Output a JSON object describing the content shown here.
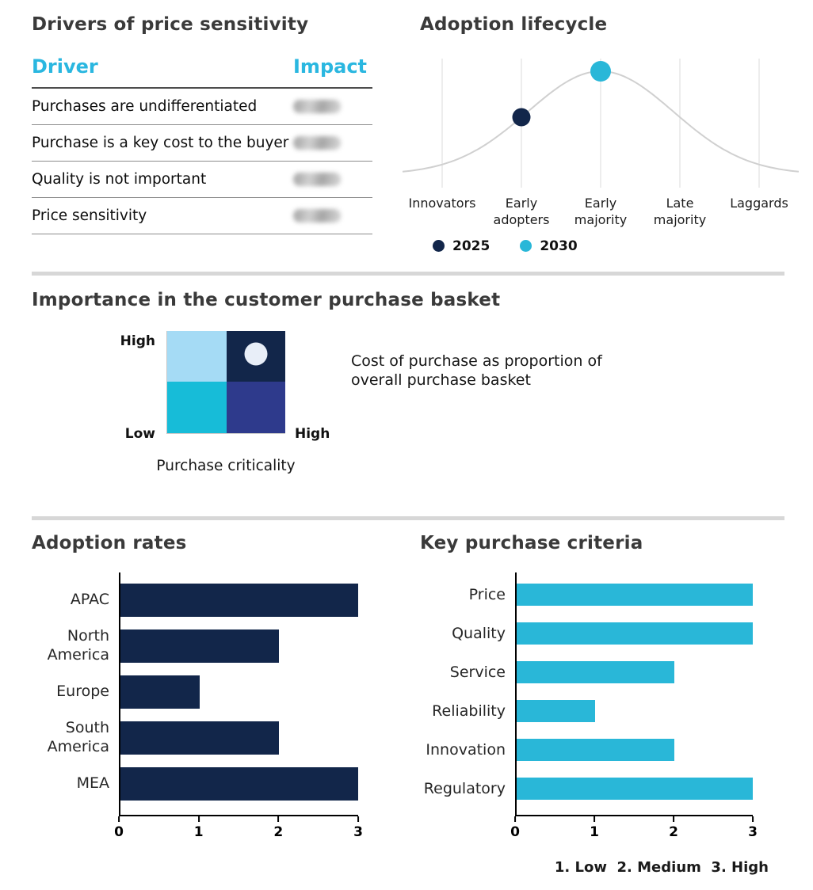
{
  "colors": {
    "navy": "#12264a",
    "cyan": "#29b7d8",
    "header_cyan": "#2ab7e0",
    "light_blue": "#a5dbf5",
    "quadrant_cyan": "#17bcd8",
    "indigo": "#2e3a8c",
    "marker_light": "#e8eef8",
    "curve_gray": "#d0d0d0",
    "divider_gray": "#d7d7d7"
  },
  "chart_data": [
    {
      "type": "table",
      "title": "Drivers of price sensitivity",
      "columns": [
        "Driver",
        "Impact"
      ],
      "rows": [
        "Purchases are undifferentiated",
        "Purchase is a key cost to the buyer",
        "Quality is not important",
        "Price sensitivity"
      ],
      "impact_values": [
        "blurred",
        "blurred",
        "blurred",
        "blurred"
      ]
    },
    {
      "type": "line",
      "title": "Adoption lifecycle",
      "curve": "bell",
      "categories": [
        "Innovators",
        "Early adopters",
        "Early majority",
        "Late majority",
        "Laggards"
      ],
      "markers": [
        {
          "label": "2025",
          "category": "Early adopters",
          "color_key": "navy"
        },
        {
          "label": "2030",
          "category": "Early majority",
          "color_key": "cyan"
        }
      ],
      "legend_position": "bottom"
    },
    {
      "type": "heatmap",
      "title": "Importance in the customer purchase basket",
      "xlabel": "Purchase criticality",
      "y_top_label": "High",
      "origin_label": "Low",
      "x_right_label": "High",
      "annotation": "Cost of purchase as proportion of overall purchase basket",
      "cells": [
        {
          "row": 0,
          "col": 0,
          "color_key": "light_blue",
          "marker": false
        },
        {
          "row": 0,
          "col": 1,
          "color_key": "navy",
          "marker": true
        },
        {
          "row": 1,
          "col": 0,
          "color_key": "quadrant_cyan",
          "marker": false
        },
        {
          "row": 1,
          "col": 1,
          "color_key": "indigo",
          "marker": false
        }
      ]
    },
    {
      "type": "bar",
      "orientation": "horizontal",
      "title": "Adoption rates",
      "categories": [
        "APAC",
        "North America",
        "Europe",
        "South America",
        "MEA"
      ],
      "values": [
        3,
        2,
        1,
        2,
        3
      ],
      "xlim": [
        0,
        3
      ],
      "xticks": [
        0,
        1,
        2,
        3
      ],
      "color_key": "navy"
    },
    {
      "type": "bar",
      "orientation": "horizontal",
      "title": "Key purchase criteria",
      "categories": [
        "Price",
        "Quality",
        "Service",
        "Reliability",
        "Innovation",
        "Regulatory"
      ],
      "values": [
        3,
        3,
        2,
        1,
        2,
        3
      ],
      "xlim": [
        0,
        3
      ],
      "xticks": [
        0,
        1,
        2,
        3
      ],
      "color_key": "cyan",
      "footnote": "1. Low  2. Medium  3. High"
    }
  ]
}
